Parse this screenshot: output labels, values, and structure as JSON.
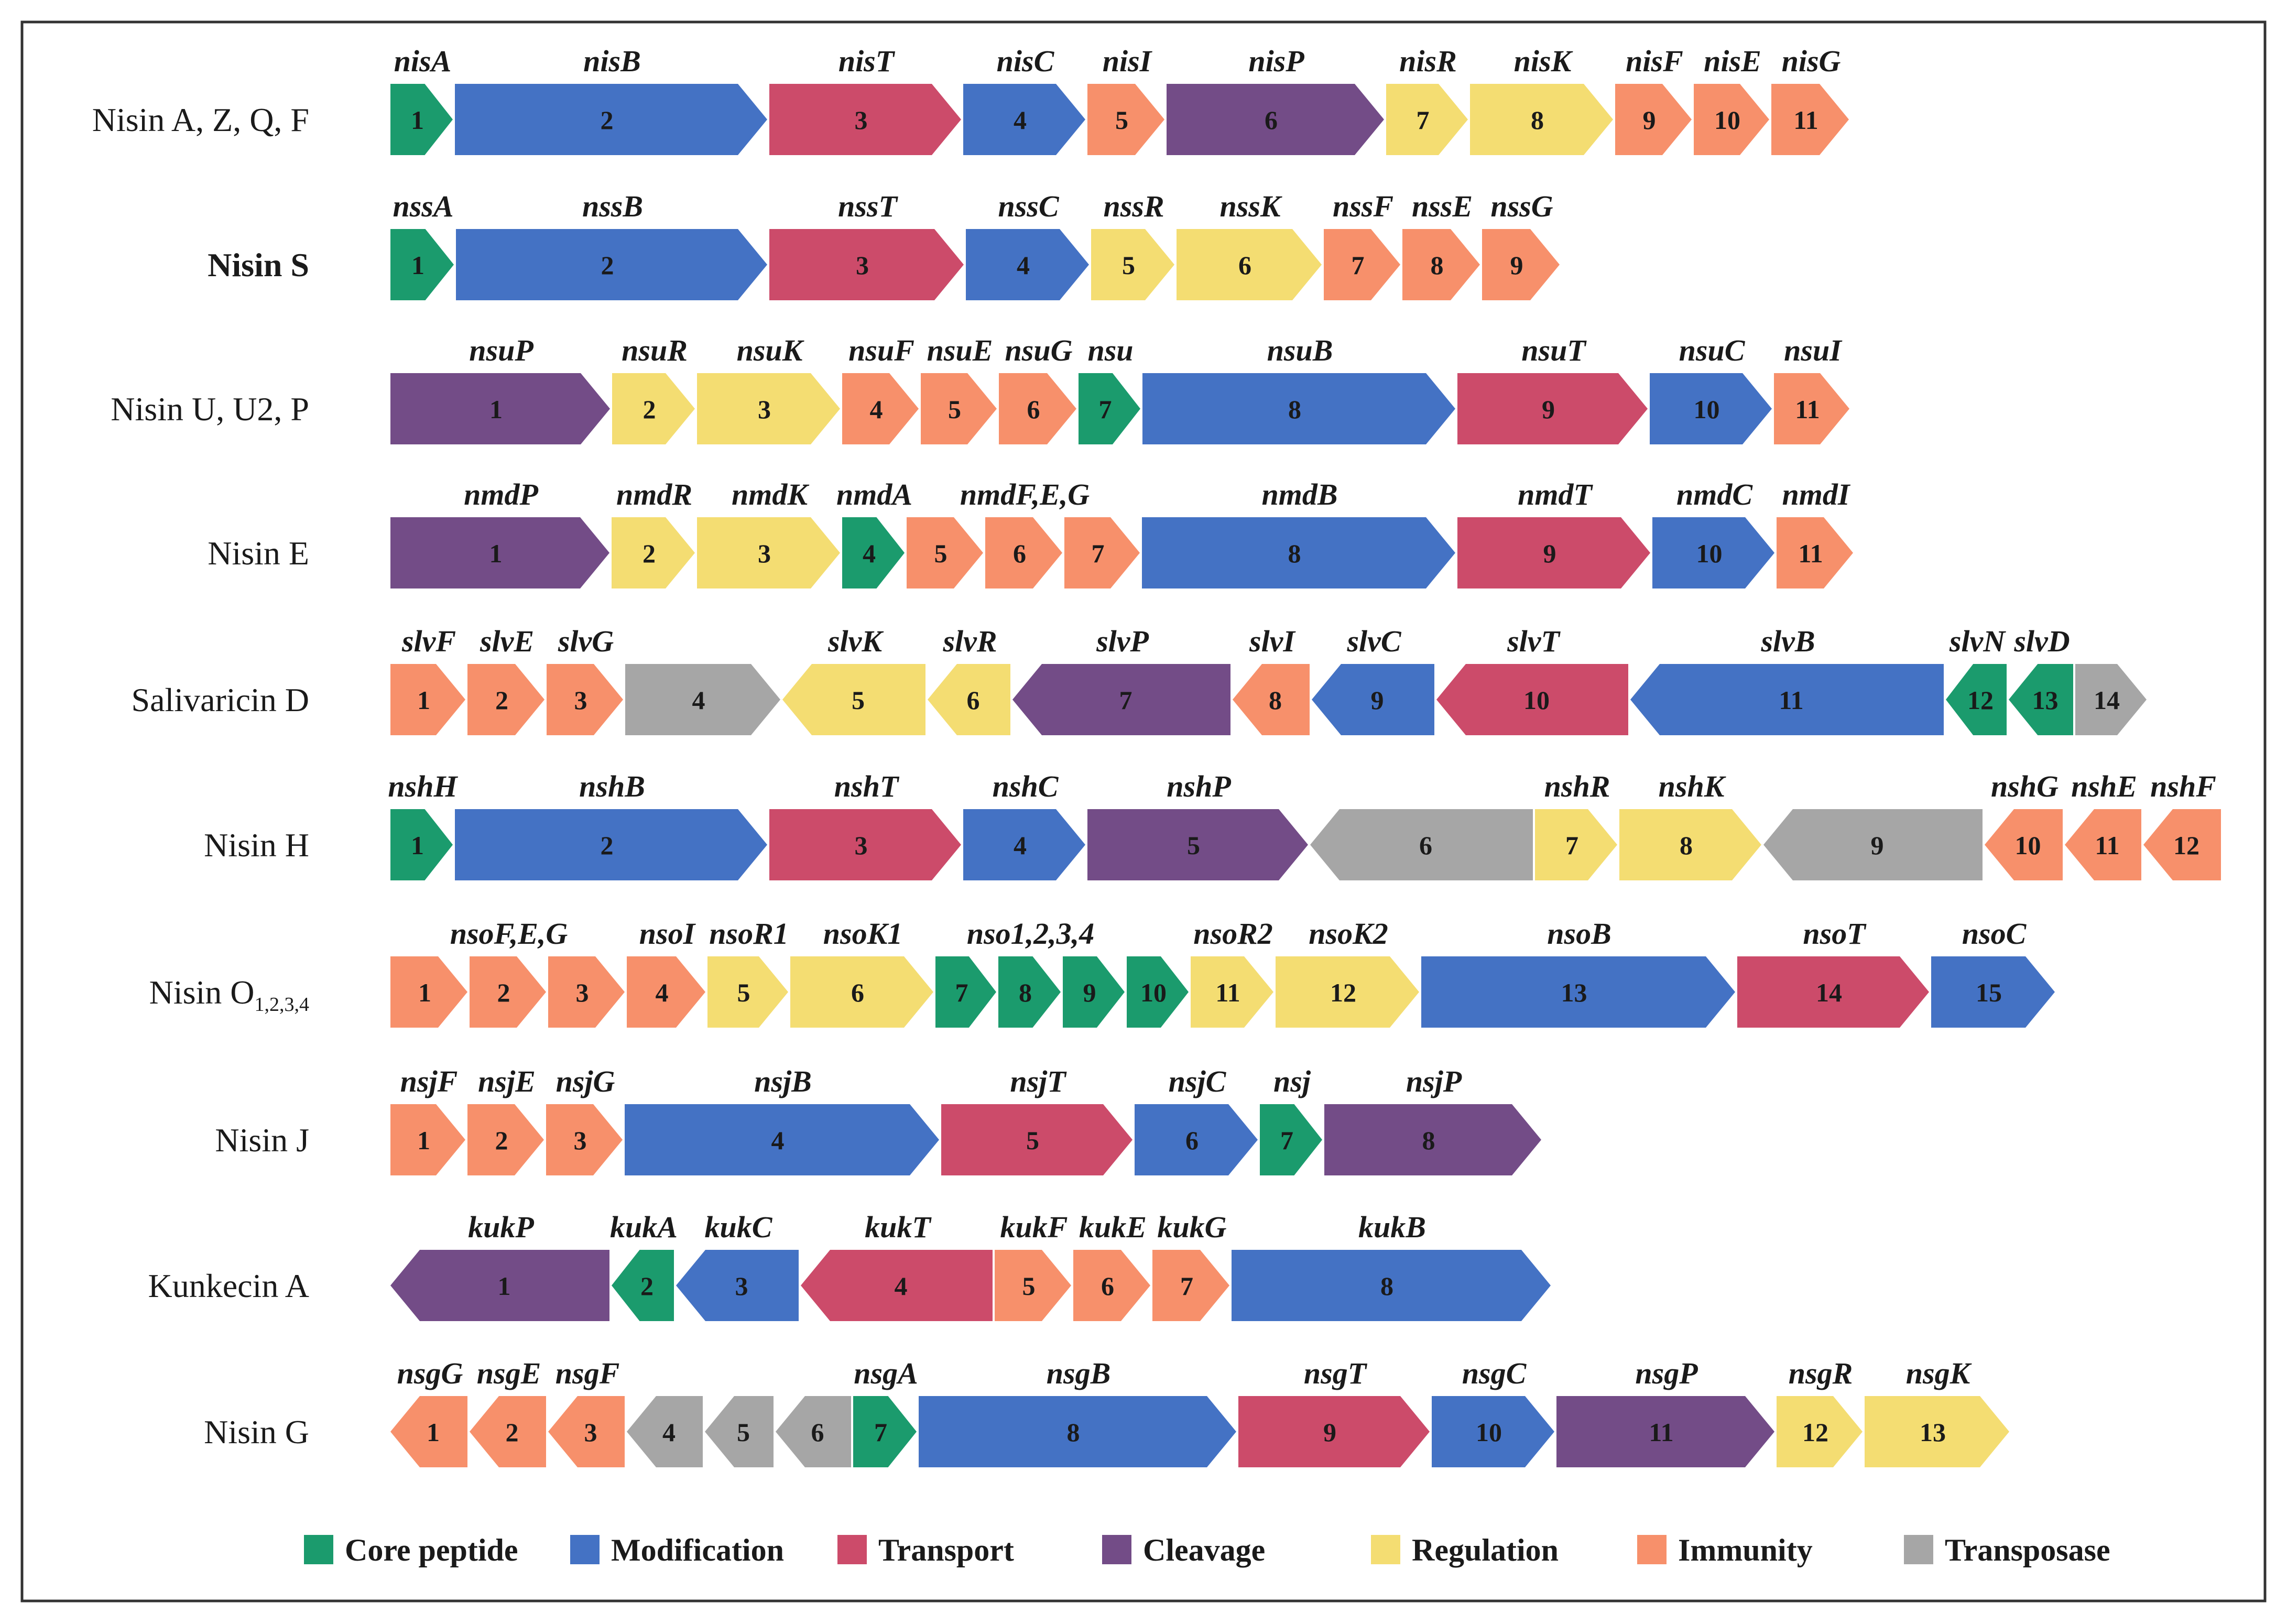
{
  "categories": {
    "core": {
      "label": "Core peptide",
      "color": "#1b9b6d"
    },
    "mod": {
      "label": "Modification",
      "color": "#4472c4"
    },
    "trans": {
      "label": "Transport",
      "color": "#cc4b6a"
    },
    "cleav": {
      "label": "Cleavage",
      "color": "#734c87"
    },
    "reg": {
      "label": "Regulation",
      "color": "#f4dd72"
    },
    "imm": {
      "label": "Immunity",
      "color": "#f7906b"
    },
    "tp": {
      "label": "Transposase",
      "color": "#a6a6a6"
    }
  },
  "legend_order": [
    "core",
    "mod",
    "trans",
    "cleav",
    "reg",
    "imm",
    "tp"
  ],
  "clusters": [
    {
      "label": "Nisin A, Z, Q, F",
      "bold": false,
      "names": [
        {
          "text": "nisA",
          "gene": 0
        },
        {
          "text": "nisB",
          "gene": 1
        },
        {
          "text": "nisT",
          "gene": 2
        },
        {
          "text": "nisC",
          "gene": 3
        },
        {
          "text": "nisI",
          "gene": 4
        },
        {
          "text": "nisP",
          "gene": 5
        },
        {
          "text": "nisR",
          "gene": 6
        },
        {
          "text": "nisK",
          "gene": 7
        },
        {
          "text": "nisF",
          "gene": 8
        },
        {
          "text": "nisE",
          "gene": 9
        },
        {
          "text": "nisG",
          "gene": 10
        }
      ],
      "genes": [
        {
          "n": "1",
          "cat": "core",
          "dir": "R"
        },
        {
          "n": "2",
          "cat": "mod",
          "dir": "R"
        },
        {
          "n": "3",
          "cat": "trans",
          "dir": "R"
        },
        {
          "n": "4",
          "cat": "mod",
          "dir": "R"
        },
        {
          "n": "5",
          "cat": "imm",
          "dir": "R"
        },
        {
          "n": "6",
          "cat": "cleav",
          "dir": "R"
        },
        {
          "n": "7",
          "cat": "reg",
          "dir": "R"
        },
        {
          "n": "8",
          "cat": "reg",
          "dir": "R"
        },
        {
          "n": "9",
          "cat": "imm",
          "dir": "R"
        },
        {
          "n": "10",
          "cat": "imm",
          "dir": "R"
        },
        {
          "n": "11",
          "cat": "imm",
          "dir": "R"
        }
      ]
    },
    {
      "label": "Nisin S",
      "bold": true,
      "names": [
        {
          "text": "nssA",
          "gene": 0
        },
        {
          "text": "nssB",
          "gene": 1
        },
        {
          "text": "nssT",
          "gene": 2
        },
        {
          "text": "nssC",
          "gene": 3
        },
        {
          "text": "nssR",
          "gene": 4
        },
        {
          "text": "nssK",
          "gene": 5
        },
        {
          "text": "nssF",
          "gene": 6
        },
        {
          "text": "nssE",
          "gene": 7
        },
        {
          "text": "nssG",
          "gene": 8
        }
      ],
      "genes": [
        {
          "n": "1",
          "cat": "core",
          "dir": "R"
        },
        {
          "n": "2",
          "cat": "mod",
          "dir": "R"
        },
        {
          "n": "3",
          "cat": "trans",
          "dir": "R"
        },
        {
          "n": "4",
          "cat": "mod",
          "dir": "R"
        },
        {
          "n": "5",
          "cat": "reg",
          "dir": "R"
        },
        {
          "n": "6",
          "cat": "reg",
          "dir": "R"
        },
        {
          "n": "7",
          "cat": "imm",
          "dir": "R"
        },
        {
          "n": "8",
          "cat": "imm",
          "dir": "R"
        },
        {
          "n": "9",
          "cat": "imm",
          "dir": "R"
        }
      ]
    },
    {
      "label": "Nisin U, U2, P",
      "bold": false,
      "names": [
        {
          "text": "nsuP",
          "gene": 0
        },
        {
          "text": "nsuR",
          "gene": 1
        },
        {
          "text": "nsuK",
          "gene": 2
        },
        {
          "text": "nsuF",
          "gene": 3
        },
        {
          "text": "nsuE",
          "gene": 4
        },
        {
          "text": "nsuG",
          "gene": 5
        },
        {
          "text": "nsu",
          "gene": 6
        },
        {
          "text": "nsuB",
          "gene": 7
        },
        {
          "text": "nsuT",
          "gene": 8
        },
        {
          "text": "nsuC",
          "gene": 9
        },
        {
          "text": "nsuI",
          "gene": 10
        }
      ],
      "genes": [
        {
          "n": "1",
          "cat": "cleav",
          "dir": "R"
        },
        {
          "n": "2",
          "cat": "reg",
          "dir": "R"
        },
        {
          "n": "3",
          "cat": "reg",
          "dir": "R"
        },
        {
          "n": "4",
          "cat": "imm",
          "dir": "R"
        },
        {
          "n": "5",
          "cat": "imm",
          "dir": "R"
        },
        {
          "n": "6",
          "cat": "imm",
          "dir": "R"
        },
        {
          "n": "7",
          "cat": "core",
          "dir": "R"
        },
        {
          "n": "8",
          "cat": "mod",
          "dir": "R"
        },
        {
          "n": "9",
          "cat": "trans",
          "dir": "R"
        },
        {
          "n": "10",
          "cat": "mod",
          "dir": "R"
        },
        {
          "n": "11",
          "cat": "imm",
          "dir": "R"
        }
      ]
    },
    {
      "label": "Nisin E",
      "bold": false,
      "names": [
        {
          "text": "nmdP",
          "gene": 0
        },
        {
          "text": "nmdR",
          "gene": 1
        },
        {
          "text": "nmdK",
          "gene": 2
        },
        {
          "text": "nmdA",
          "gene": 3
        },
        {
          "text": "nmdF,E,G",
          "gene": 5
        },
        {
          "text": "nmdB",
          "gene": 7
        },
        {
          "text": "nmdT",
          "gene": 8
        },
        {
          "text": "nmdC",
          "gene": 9
        },
        {
          "text": "nmdI",
          "gene": 10
        }
      ],
      "genes": [
        {
          "n": "1",
          "cat": "cleav",
          "dir": "R"
        },
        {
          "n": "2",
          "cat": "reg",
          "dir": "R"
        },
        {
          "n": "3",
          "cat": "reg",
          "dir": "R"
        },
        {
          "n": "4",
          "cat": "core",
          "dir": "R"
        },
        {
          "n": "5",
          "cat": "imm",
          "dir": "R"
        },
        {
          "n": "6",
          "cat": "imm",
          "dir": "R"
        },
        {
          "n": "7",
          "cat": "imm",
          "dir": "R"
        },
        {
          "n": "8",
          "cat": "mod",
          "dir": "R"
        },
        {
          "n": "9",
          "cat": "trans",
          "dir": "R"
        },
        {
          "n": "10",
          "cat": "mod",
          "dir": "R"
        },
        {
          "n": "11",
          "cat": "imm",
          "dir": "R"
        }
      ]
    },
    {
      "label": "Salivaricin D",
      "bold": false,
      "names": [
        {
          "text": "slvF",
          "gene": 0
        },
        {
          "text": "slvE",
          "gene": 1
        },
        {
          "text": "slvG",
          "gene": 2
        },
        {
          "text": "slvK",
          "gene": 4
        },
        {
          "text": "slvR",
          "gene": 5
        },
        {
          "text": "slvP",
          "gene": 6
        },
        {
          "text": "slvI",
          "gene": 7
        },
        {
          "text": "slvC",
          "gene": 8
        },
        {
          "text": "slvT",
          "gene": 9
        },
        {
          "text": "slvB",
          "gene": 10
        },
        {
          "text": "slvN",
          "gene": 11
        },
        {
          "text": "slvD",
          "gene": 12
        }
      ],
      "genes": [
        {
          "n": "1",
          "cat": "imm",
          "dir": "R"
        },
        {
          "n": "2",
          "cat": "imm",
          "dir": "R"
        },
        {
          "n": "3",
          "cat": "imm",
          "dir": "R"
        },
        {
          "n": "4",
          "cat": "tp",
          "dir": "R"
        },
        {
          "n": "5",
          "cat": "reg",
          "dir": "L"
        },
        {
          "n": "6",
          "cat": "reg",
          "dir": "L"
        },
        {
          "n": "7",
          "cat": "cleav",
          "dir": "L"
        },
        {
          "n": "8",
          "cat": "imm",
          "dir": "L"
        },
        {
          "n": "9",
          "cat": "mod",
          "dir": "L"
        },
        {
          "n": "10",
          "cat": "trans",
          "dir": "L"
        },
        {
          "n": "11",
          "cat": "mod",
          "dir": "L"
        },
        {
          "n": "12",
          "cat": "core",
          "dir": "L"
        },
        {
          "n": "13",
          "cat": "core",
          "dir": "L"
        },
        {
          "n": "14",
          "cat": "tp",
          "dir": "R"
        }
      ]
    },
    {
      "label": "Nisin H",
      "bold": false,
      "names": [
        {
          "text": "nshH",
          "gene": 0
        },
        {
          "text": "nshB",
          "gene": 1
        },
        {
          "text": "nshT",
          "gene": 2
        },
        {
          "text": "nshC",
          "gene": 3
        },
        {
          "text": "nshP",
          "gene": 4
        },
        {
          "text": "nshR",
          "gene": 6
        },
        {
          "text": "nshK",
          "gene": 7
        },
        {
          "text": "nshG",
          "gene": 9
        },
        {
          "text": "nshE",
          "gene": 10
        },
        {
          "text": "nshF",
          "gene": 11
        }
      ],
      "genes": [
        {
          "n": "1",
          "cat": "core",
          "dir": "R"
        },
        {
          "n": "2",
          "cat": "mod",
          "dir": "R"
        },
        {
          "n": "3",
          "cat": "trans",
          "dir": "R"
        },
        {
          "n": "4",
          "cat": "mod",
          "dir": "R"
        },
        {
          "n": "5",
          "cat": "cleav",
          "dir": "R"
        },
        {
          "n": "6",
          "cat": "tp",
          "dir": "L"
        },
        {
          "n": "7",
          "cat": "reg",
          "dir": "R"
        },
        {
          "n": "8",
          "cat": "reg",
          "dir": "R"
        },
        {
          "n": "9",
          "cat": "tp",
          "dir": "L"
        },
        {
          "n": "10",
          "cat": "imm",
          "dir": "L"
        },
        {
          "n": "11",
          "cat": "imm",
          "dir": "L"
        },
        {
          "n": "12",
          "cat": "imm",
          "dir": "L"
        }
      ]
    },
    {
      "label": "Nisin O",
      "label_sub": "1,2,3,4",
      "bold": false,
      "names": [
        {
          "text": "nsoF,E,G",
          "gene": 1
        },
        {
          "text": "nsoI",
          "gene": 3
        },
        {
          "text": "nsoR1",
          "gene": 4
        },
        {
          "text": "nsoK1",
          "gene": 5
        },
        {
          "text": "nso1,2,3,4",
          "gene": 7
        },
        {
          "text": "nsoR2",
          "gene": 10
        },
        {
          "text": "nsoK2",
          "gene": 11
        },
        {
          "text": "nsoB",
          "gene": 12
        },
        {
          "text": "nsoT",
          "gene": 13
        },
        {
          "text": "nsoC",
          "gene": 14
        }
      ],
      "genes": [
        {
          "n": "1",
          "cat": "imm",
          "dir": "R"
        },
        {
          "n": "2",
          "cat": "imm",
          "dir": "R"
        },
        {
          "n": "3",
          "cat": "imm",
          "dir": "R"
        },
        {
          "n": "4",
          "cat": "imm",
          "dir": "R"
        },
        {
          "n": "5",
          "cat": "reg",
          "dir": "R"
        },
        {
          "n": "6",
          "cat": "reg",
          "dir": "R"
        },
        {
          "n": "7",
          "cat": "core",
          "dir": "R"
        },
        {
          "n": "8",
          "cat": "core",
          "dir": "R"
        },
        {
          "n": "9",
          "cat": "core",
          "dir": "R"
        },
        {
          "n": "10",
          "cat": "core",
          "dir": "R"
        },
        {
          "n": "11",
          "cat": "reg",
          "dir": "R"
        },
        {
          "n": "12",
          "cat": "reg",
          "dir": "R"
        },
        {
          "n": "13",
          "cat": "mod",
          "dir": "R"
        },
        {
          "n": "14",
          "cat": "trans",
          "dir": "R"
        },
        {
          "n": "15",
          "cat": "mod",
          "dir": "R"
        }
      ]
    },
    {
      "label": "Nisin J",
      "bold": false,
      "names": [
        {
          "text": "nsjF",
          "gene": 0
        },
        {
          "text": "nsjE",
          "gene": 1
        },
        {
          "text": "nsjG",
          "gene": 2
        },
        {
          "text": "nsjB",
          "gene": 3
        },
        {
          "text": "nsjT",
          "gene": 4
        },
        {
          "text": "nsjC",
          "gene": 5
        },
        {
          "text": "nsj",
          "gene": 6
        },
        {
          "text": "nsjP",
          "gene": 7
        }
      ],
      "genes": [
        {
          "n": "1",
          "cat": "imm",
          "dir": "R"
        },
        {
          "n": "2",
          "cat": "imm",
          "dir": "R"
        },
        {
          "n": "3",
          "cat": "imm",
          "dir": "R"
        },
        {
          "n": "4",
          "cat": "mod",
          "dir": "R"
        },
        {
          "n": "5",
          "cat": "trans",
          "dir": "R"
        },
        {
          "n": "6",
          "cat": "mod",
          "dir": "R"
        },
        {
          "n": "7",
          "cat": "core",
          "dir": "R"
        },
        {
          "n": "8",
          "cat": "cleav",
          "dir": "R"
        }
      ]
    },
    {
      "label": "Kunkecin A",
      "bold": false,
      "names": [
        {
          "text": "kukP",
          "gene": 0
        },
        {
          "text": "kukA",
          "gene": 1
        },
        {
          "text": "kukC",
          "gene": 2
        },
        {
          "text": "kukT",
          "gene": 3
        },
        {
          "text": "kukF",
          "gene": 4
        },
        {
          "text": "kukE",
          "gene": 5
        },
        {
          "text": "kukG",
          "gene": 6
        },
        {
          "text": "kukB",
          "gene": 7
        }
      ],
      "genes": [
        {
          "n": "1",
          "cat": "cleav",
          "dir": "L"
        },
        {
          "n": "2",
          "cat": "core",
          "dir": "L"
        },
        {
          "n": "3",
          "cat": "mod",
          "dir": "L"
        },
        {
          "n": "4",
          "cat": "trans",
          "dir": "L"
        },
        {
          "n": "5",
          "cat": "imm",
          "dir": "R"
        },
        {
          "n": "6",
          "cat": "imm",
          "dir": "R"
        },
        {
          "n": "7",
          "cat": "imm",
          "dir": "R"
        },
        {
          "n": "8",
          "cat": "mod",
          "dir": "R"
        }
      ]
    },
    {
      "label": "Nisin G",
      "bold": false,
      "names": [
        {
          "text": "nsgG",
          "gene": 0
        },
        {
          "text": "nsgE",
          "gene": 1
        },
        {
          "text": "nsgF",
          "gene": 2
        },
        {
          "text": "nsgA",
          "gene": 6
        },
        {
          "text": "nsgB",
          "gene": 7
        },
        {
          "text": "nsgT",
          "gene": 8
        },
        {
          "text": "nsgC",
          "gene": 9
        },
        {
          "text": "nsgP",
          "gene": 10
        },
        {
          "text": "nsgR",
          "gene": 11
        },
        {
          "text": "nsgK",
          "gene": 12
        }
      ],
      "genes": [
        {
          "n": "1",
          "cat": "imm",
          "dir": "L"
        },
        {
          "n": "2",
          "cat": "imm",
          "dir": "L"
        },
        {
          "n": "3",
          "cat": "imm",
          "dir": "L"
        },
        {
          "n": "4",
          "cat": "tp",
          "dir": "L"
        },
        {
          "n": "5",
          "cat": "tp",
          "dir": "L"
        },
        {
          "n": "6",
          "cat": "tp",
          "dir": "L"
        },
        {
          "n": "7",
          "cat": "core",
          "dir": "R"
        },
        {
          "n": "8",
          "cat": "mod",
          "dir": "R"
        },
        {
          "n": "9",
          "cat": "trans",
          "dir": "R"
        },
        {
          "n": "10",
          "cat": "mod",
          "dir": "R"
        },
        {
          "n": "11",
          "cat": "cleav",
          "dir": "R"
        },
        {
          "n": "12",
          "cat": "reg",
          "dir": "R"
        },
        {
          "n": "13",
          "cat": "reg",
          "dir": "R"
        }
      ]
    }
  ]
}
